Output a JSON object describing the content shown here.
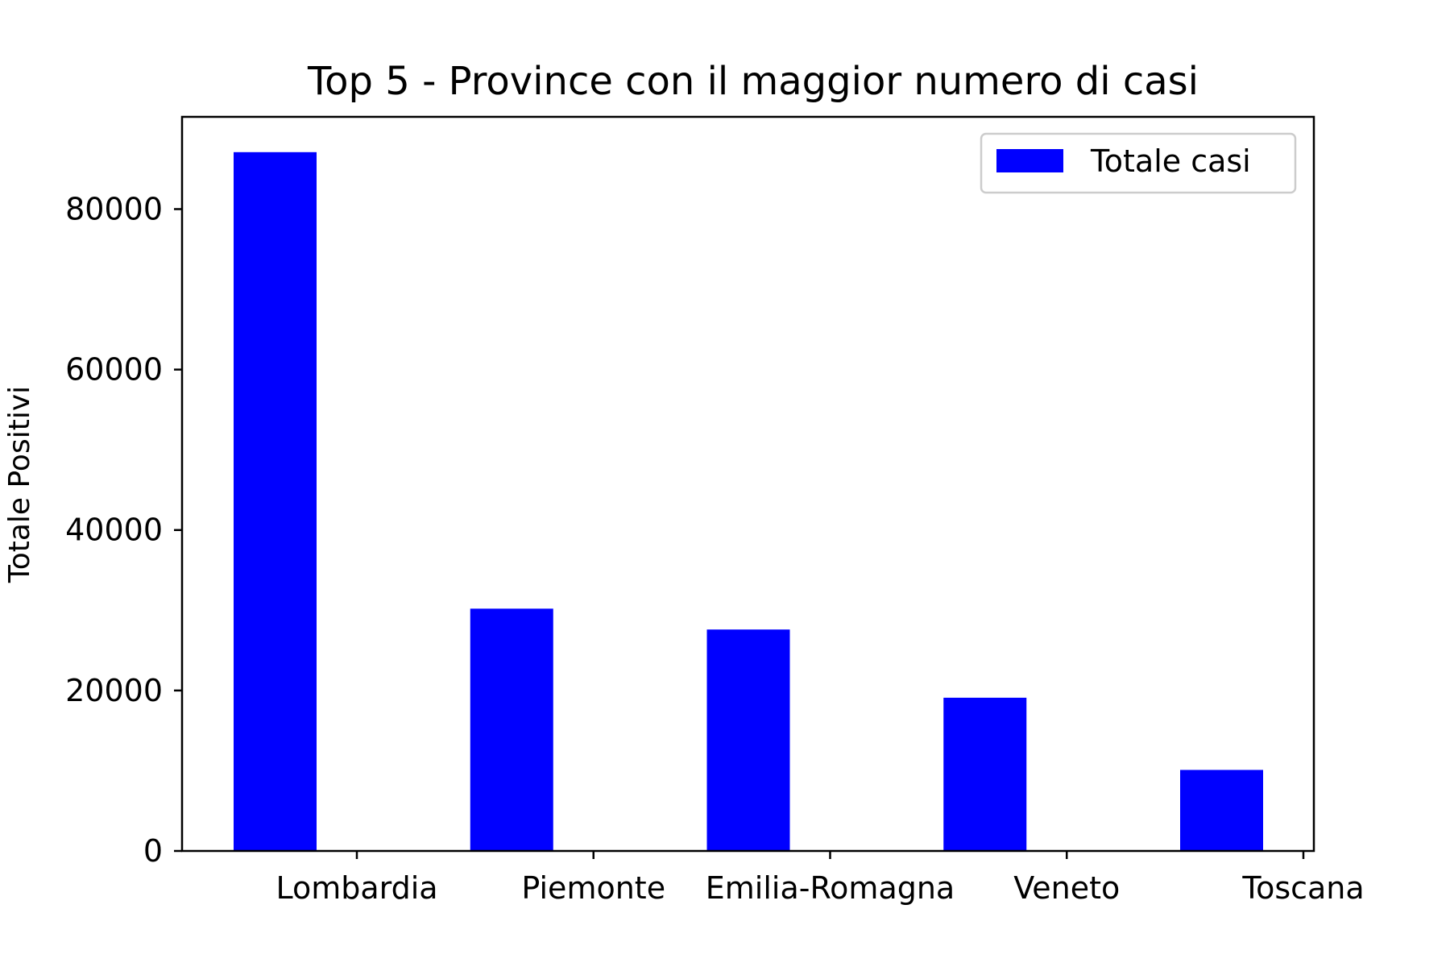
{
  "chart_data": {
    "type": "bar",
    "title": "Top 5 - Province con il maggior numero di casi",
    "xlabel": "",
    "ylabel": "Totale Positivi",
    "categories": [
      "Lombardia",
      "Piemonte",
      "Emilia-Romagna",
      "Veneto",
      "Toscana"
    ],
    "series": [
      {
        "name": "Totale casi",
        "values": [
          87100,
          30200,
          27600,
          19100,
          10100
        ],
        "color": "#0000ff"
      }
    ],
    "ylim": [
      0,
      91500
    ],
    "yticks": [
      0,
      20000,
      40000,
      60000,
      80000
    ],
    "ytick_labels": [
      "0",
      "20000",
      "40000",
      "60000",
      "80000"
    ],
    "grid": false,
    "legend": "top-right",
    "bar_offset": "left-of-tick"
  }
}
